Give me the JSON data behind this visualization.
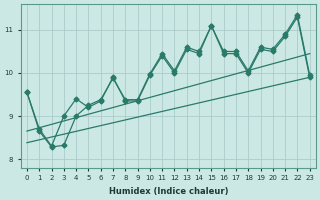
{
  "xlabel": "Humidex (Indice chaleur)",
  "bg_color": "#cce8e4",
  "grid_color": "#aacccc",
  "line_color": "#2a7a6a",
  "xlim": [
    -0.5,
    23.5
  ],
  "ylim": [
    7.8,
    11.6
  ],
  "xticks": [
    0,
    1,
    2,
    3,
    4,
    5,
    6,
    7,
    8,
    9,
    10,
    11,
    12,
    13,
    14,
    15,
    16,
    17,
    18,
    19,
    20,
    21,
    22,
    23
  ],
  "yticks": [
    8,
    9,
    10,
    11
  ],
  "s1x": [
    0,
    1,
    2,
    3,
    4,
    5,
    6,
    7,
    8,
    9,
    10,
    11,
    12,
    13,
    14,
    15,
    16,
    17,
    18,
    19,
    20,
    21,
    22,
    23
  ],
  "s1y": [
    9.55,
    8.7,
    8.3,
    9.0,
    9.4,
    9.2,
    9.35,
    9.9,
    9.35,
    9.35,
    9.95,
    10.4,
    10.0,
    10.55,
    10.45,
    11.1,
    10.45,
    10.45,
    10.0,
    10.55,
    10.5,
    10.85,
    11.3,
    9.9
  ],
  "s2x": [
    0,
    1,
    2,
    3,
    4,
    5,
    6,
    7,
    8,
    9,
    10,
    11,
    12,
    13,
    14,
    15,
    16,
    17,
    18,
    19,
    20,
    21,
    22,
    23
  ],
  "s2y": [
    9.55,
    8.65,
    8.28,
    8.32,
    9.0,
    9.25,
    9.38,
    9.88,
    9.38,
    9.38,
    9.98,
    10.45,
    10.05,
    10.6,
    10.5,
    11.1,
    10.5,
    10.5,
    10.05,
    10.6,
    10.55,
    10.9,
    11.35,
    9.95
  ],
  "s3x": [
    0,
    23
  ],
  "s3y": [
    8.65,
    10.45
  ],
  "s4x": [
    0,
    23
  ],
  "s4y": [
    8.38,
    9.9
  ]
}
